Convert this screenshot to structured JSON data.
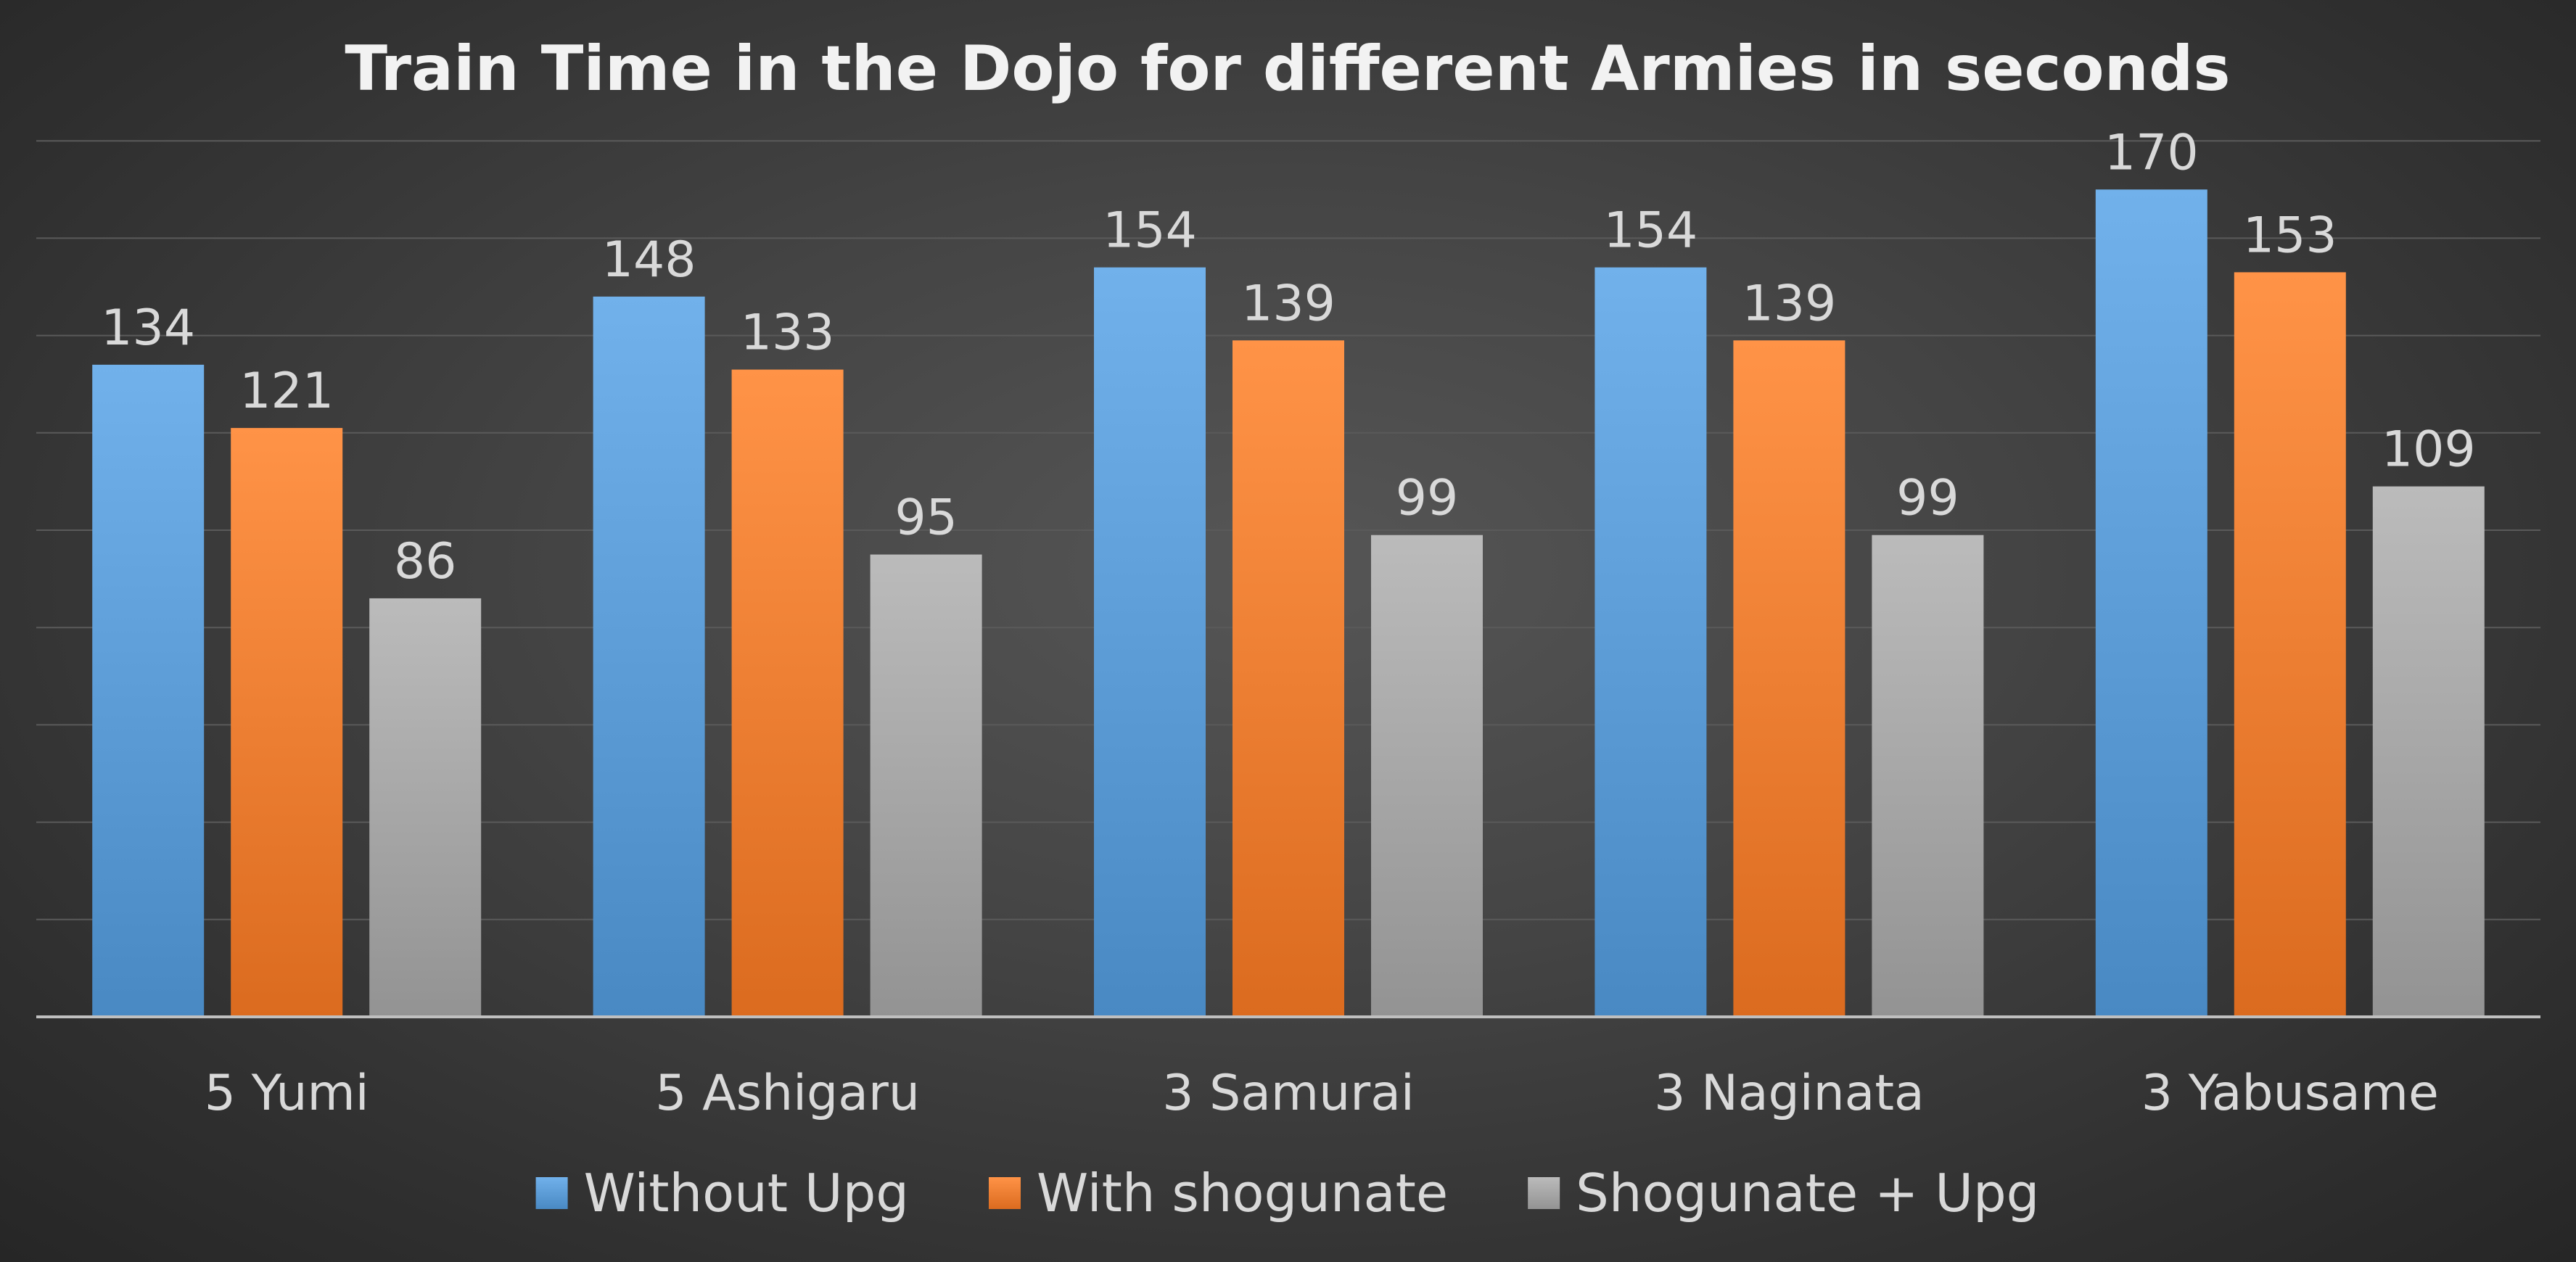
{
  "chart_data": {
    "type": "bar",
    "title": "Train Time in the Dojo for different Armies in seconds",
    "categories": [
      "5 Yumi",
      "5 Ashigaru",
      "3 Samurai",
      "3 Naginata",
      "3 Yabusame"
    ],
    "series": [
      {
        "name": "Without Upg",
        "values": [
          134,
          148,
          154,
          154,
          170
        ],
        "color": "#5b9bd5"
      },
      {
        "name": "With shogunate",
        "values": [
          121,
          133,
          139,
          139,
          153
        ],
        "color": "#ed7d31"
      },
      {
        "name": "Shogunate + Upg",
        "values": [
          86,
          95,
          99,
          99,
          109
        ],
        "color": "#a5a5a5"
      }
    ],
    "ylim": [
      0,
      180
    ],
    "grid": true,
    "legend": "bottom",
    "data_labels": true
  }
}
